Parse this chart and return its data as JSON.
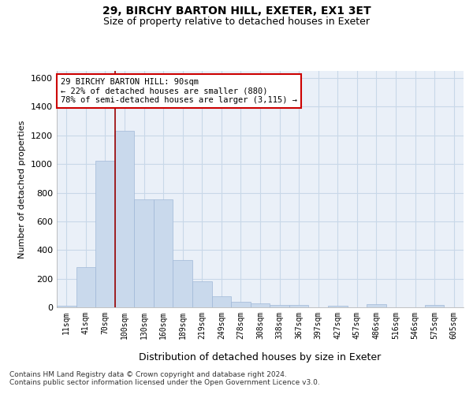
{
  "title": "29, BIRCHY BARTON HILL, EXETER, EX1 3ET",
  "subtitle": "Size of property relative to detached houses in Exeter",
  "xlabel": "Distribution of detached houses by size in Exeter",
  "ylabel": "Number of detached properties",
  "categories": [
    "11sqm",
    "41sqm",
    "70sqm",
    "100sqm",
    "130sqm",
    "160sqm",
    "189sqm",
    "219sqm",
    "249sqm",
    "278sqm",
    "308sqm",
    "338sqm",
    "367sqm",
    "397sqm",
    "427sqm",
    "457sqm",
    "486sqm",
    "516sqm",
    "546sqm",
    "575sqm",
    "605sqm"
  ],
  "values": [
    10,
    280,
    1025,
    1230,
    755,
    755,
    330,
    180,
    75,
    40,
    30,
    15,
    15,
    0,
    10,
    0,
    20,
    0,
    0,
    15,
    0
  ],
  "bar_color": "#c9d9ec",
  "bar_edge_color": "#a0b8d8",
  "grid_color": "#c8d8e8",
  "background_color": "#eaf0f8",
  "vline_color": "#990000",
  "annotation_text": "29 BIRCHY BARTON HILL: 90sqm\n← 22% of detached houses are smaller (880)\n78% of semi-detached houses are larger (3,115) →",
  "annotation_box_color": "white",
  "annotation_box_edge_color": "#cc0000",
  "ylim": [
    0,
    1650
  ],
  "yticks": [
    0,
    200,
    400,
    600,
    800,
    1000,
    1200,
    1400,
    1600
  ],
  "footer1": "Contains HM Land Registry data © Crown copyright and database right 2024.",
  "footer2": "Contains public sector information licensed under the Open Government Licence v3.0.",
  "title_fontsize": 10,
  "subtitle_fontsize": 9
}
